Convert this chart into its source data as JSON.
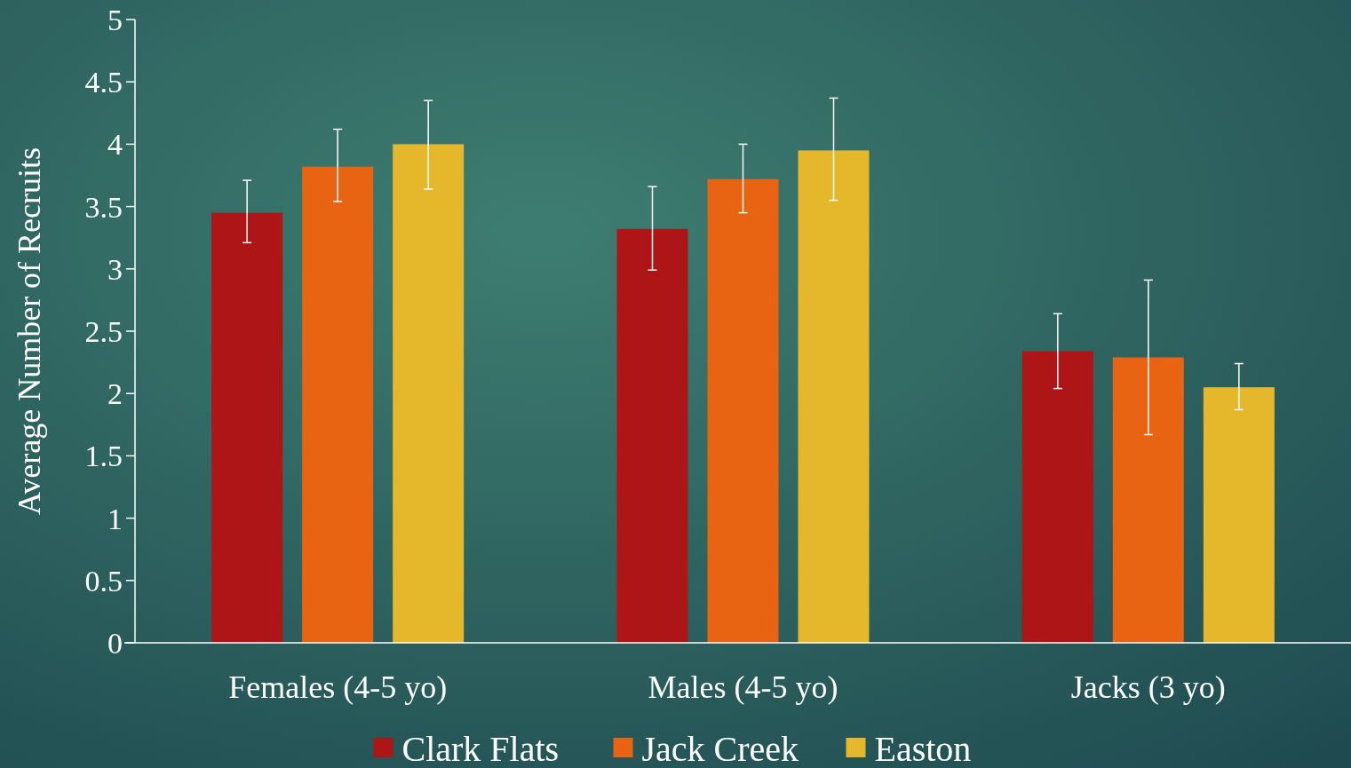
{
  "chart_data": {
    "type": "bar",
    "ylabel": "Average Number of Recruits",
    "categories": [
      "Females (4-5 yo)",
      "Males (4-5 yo)",
      "Jacks (3 yo)"
    ],
    "series": [
      {
        "name": "Clark Flats",
        "color": "#ae1517",
        "values": [
          3.45,
          3.32,
          2.34
        ],
        "errors": [
          [
            3.21,
            3.71
          ],
          [
            2.99,
            3.66
          ],
          [
            2.04,
            2.64
          ]
        ]
      },
      {
        "name": "Jack Creek",
        "color": "#e86312",
        "values": [
          3.82,
          3.72,
          2.29
        ],
        "errors": [
          [
            3.54,
            4.12
          ],
          [
            3.45,
            4.0
          ],
          [
            1.67,
            2.91
          ]
        ]
      },
      {
        "name": "Easton",
        "color": "#e5b72b",
        "values": [
          4.0,
          3.95,
          2.05
        ],
        "errors": [
          [
            3.64,
            4.35
          ],
          [
            3.55,
            4.37
          ],
          [
            1.87,
            2.24
          ]
        ]
      }
    ],
    "ylim": [
      0,
      5
    ],
    "yticks": [
      0,
      0.5,
      1,
      1.5,
      2,
      2.5,
      3,
      3.5,
      4,
      4.5,
      5
    ],
    "grid": false,
    "legend": "bottom"
  }
}
